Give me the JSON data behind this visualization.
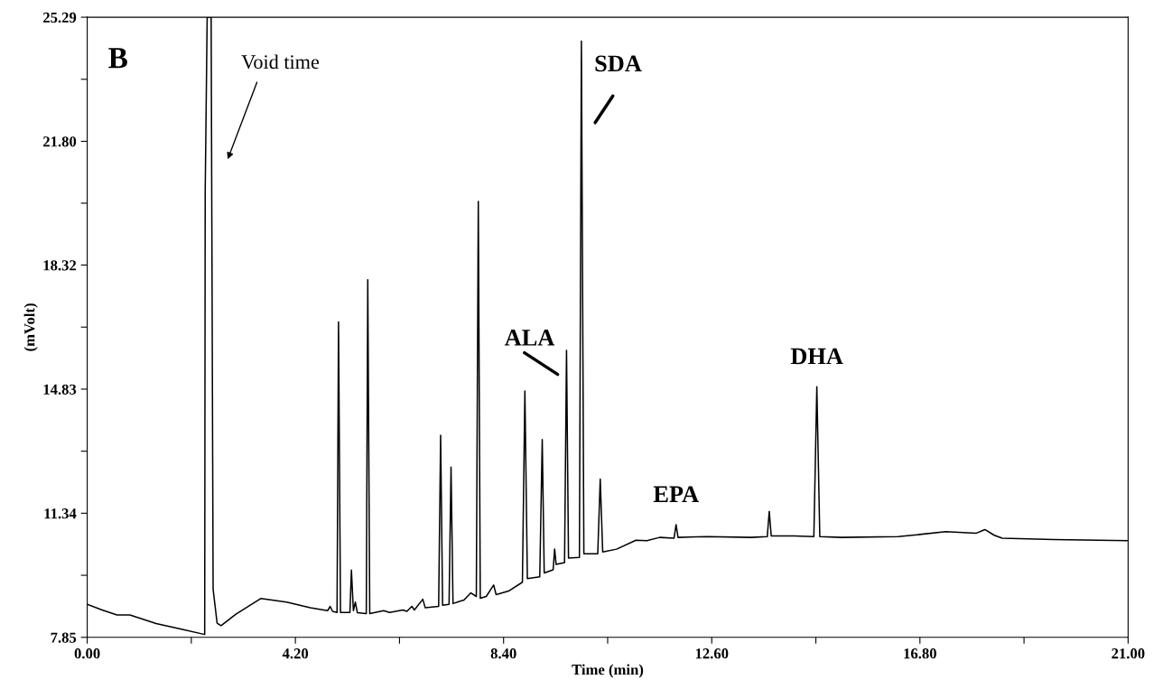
{
  "chart_data": {
    "type": "line",
    "xlabel": "Time (min)",
    "ylabel": "(mVolt)",
    "annotations": [
      "B",
      "Void time",
      "ALA",
      "SDA",
      {
        "text": "EPA",
        "x": 11.88,
        "y": 11.02
      },
      {
        "text": "DHA",
        "x": 14.72,
        "y": 14.9
      }
    ],
    "series": [
      {
        "color": "#000000",
        "x": [
          0,
          0.3,
          0.6,
          0.86,
          1.39,
          1.9,
          2.37,
          2.38,
          2.42,
          2.5,
          2.54,
          2.62,
          2.7,
          3.0,
          3.5,
          4.02,
          4.5,
          4.85,
          4.9,
          4.95,
          5.04,
          5.07,
          5.11,
          5.3,
          5.33,
          5.37,
          5.41,
          5.45,
          5.63,
          5.66,
          5.7,
          5.98,
          6.1,
          6.37,
          6.45,
          6.55,
          6.6,
          6.77,
          6.82,
          7.09,
          7.13,
          7.17,
          7.3,
          7.34,
          7.38,
          7.6,
          7.74,
          7.85,
          7.89,
          7.93,
          8.05,
          8.2,
          8.25,
          8.5,
          8.78,
          8.83,
          8.88,
          9.13,
          9.18,
          9.22,
          9.4,
          9.43,
          9.46,
          9.63,
          9.67,
          9.71,
          9.93,
          9.97,
          10.02,
          10.3,
          10.35,
          10.4,
          10.68,
          11.07,
          11.29,
          11.55,
          11.84,
          11.88,
          11.92,
          12.5,
          13.39,
          13.72,
          13.76,
          13.8,
          14.26,
          14.66,
          14.72,
          14.78,
          15.22,
          16.36,
          17.32,
          17.94,
          18.11,
          18.3,
          18.46,
          19.5,
          21.0
        ],
        "values": [
          8.78,
          8.62,
          8.48,
          8.48,
          8.24,
          8.08,
          7.93,
          20.36,
          25.29,
          25.29,
          9.2,
          8.25,
          8.18,
          8.5,
          8.94,
          8.84,
          8.68,
          8.6,
          8.72,
          8.58,
          8.55,
          16.72,
          8.55,
          8.55,
          9.74,
          8.6,
          8.84,
          8.54,
          8.52,
          17.91,
          8.52,
          8.6,
          8.55,
          8.62,
          8.58,
          8.72,
          8.62,
          8.92,
          8.68,
          8.72,
          13.53,
          8.75,
          8.78,
          12.64,
          8.8,
          8.9,
          9.1,
          9.0,
          20.11,
          8.95,
          9.0,
          9.32,
          9.05,
          9.15,
          9.4,
          14.78,
          9.5,
          9.55,
          13.41,
          9.66,
          9.75,
          10.33,
          9.9,
          9.95,
          15.92,
          10.08,
          10.1,
          24.62,
          10.2,
          10.2,
          12.3,
          10.25,
          10.33,
          10.58,
          10.57,
          10.66,
          10.64,
          11.02,
          10.66,
          10.68,
          10.66,
          10.68,
          11.39,
          10.7,
          10.7,
          10.68,
          14.9,
          10.68,
          10.66,
          10.68,
          10.82,
          10.78,
          10.88,
          10.72,
          10.64,
          10.6,
          10.57
        ]
      }
    ],
    "xlim": [
      0,
      21
    ],
    "ylim": [
      7.85,
      25.29
    ],
    "xticks": [
      {
        "value": 0,
        "label": "0.00"
      },
      {
        "value": 2.1,
        "label": null
      },
      {
        "value": 4.2,
        "label": "4.20"
      },
      {
        "value": 6.3,
        "label": null
      },
      {
        "value": 8.4,
        "label": "8.40"
      },
      {
        "value": 10.5,
        "label": null
      },
      {
        "value": 12.6,
        "label": "12.60"
      },
      {
        "value": 14.7,
        "label": null
      },
      {
        "value": 16.8,
        "label": "16.80"
      },
      {
        "value": 18.9,
        "label": null
      },
      {
        "value": 21,
        "label": "21.00"
      }
    ],
    "yticks": [
      7.85,
      {
        "value": 9.595,
        "label": null
      },
      11.34,
      {
        "value": 13.085,
        "label": null
      },
      14.83,
      {
        "value": 16.575,
        "label": null
      },
      {
        "value": 21.8,
        "label": "21.80"
      },
      {
        "value": 18.32,
        "label": "18.32"
      },
      {
        "value": 20.06,
        "label": null
      },
      {
        "value": 23.545,
        "label": null
      },
      25.29
    ],
    "grid": false,
    "marker": "none",
    "line_style": "solid"
  }
}
